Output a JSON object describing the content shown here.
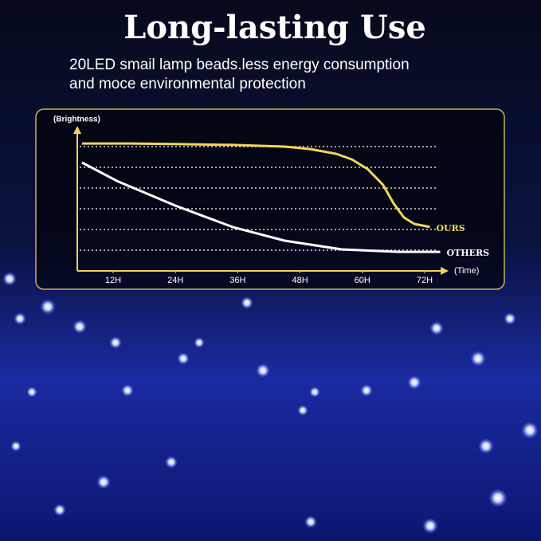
{
  "chart_data": {
    "type": "line",
    "title": "Long-lasting Use",
    "subtitle": [
      "20LED smail lamp beads.less energy consumption",
      "and moce environmental protection"
    ],
    "y_label": "(Brightness)",
    "x_label": "(Time)",
    "xlim": [
      5,
      76
    ],
    "ylim": [
      0,
      7
    ],
    "xticks": [
      {
        "value": 12,
        "label": "12H"
      },
      {
        "value": 24,
        "label": "24H"
      },
      {
        "value": 36,
        "label": "36H"
      },
      {
        "value": 48,
        "label": "48H"
      },
      {
        "value": 60,
        "label": "60H"
      },
      {
        "value": 72,
        "label": "72H"
      }
    ],
    "ygrid": [
      1,
      2,
      3,
      4,
      5,
      6
    ],
    "series": [
      {
        "name": "OURS",
        "color": "#f2d45c",
        "x": [
          6,
          15,
          25,
          35,
          45,
          50,
          55,
          58,
          61,
          64,
          66,
          68,
          70,
          73
        ],
        "values": [
          6.15,
          6.15,
          6.12,
          6.08,
          6.0,
          5.88,
          5.65,
          5.38,
          4.92,
          4.15,
          3.27,
          2.58,
          2.27,
          2.12
        ]
      },
      {
        "name": "OTHERS",
        "color": "#ffffff",
        "x": [
          6,
          13,
          24,
          35,
          45,
          56,
          67,
          75
        ],
        "values": [
          5.23,
          4.31,
          3.15,
          2.12,
          1.46,
          1.04,
          0.92,
          0.92
        ]
      }
    ]
  }
}
